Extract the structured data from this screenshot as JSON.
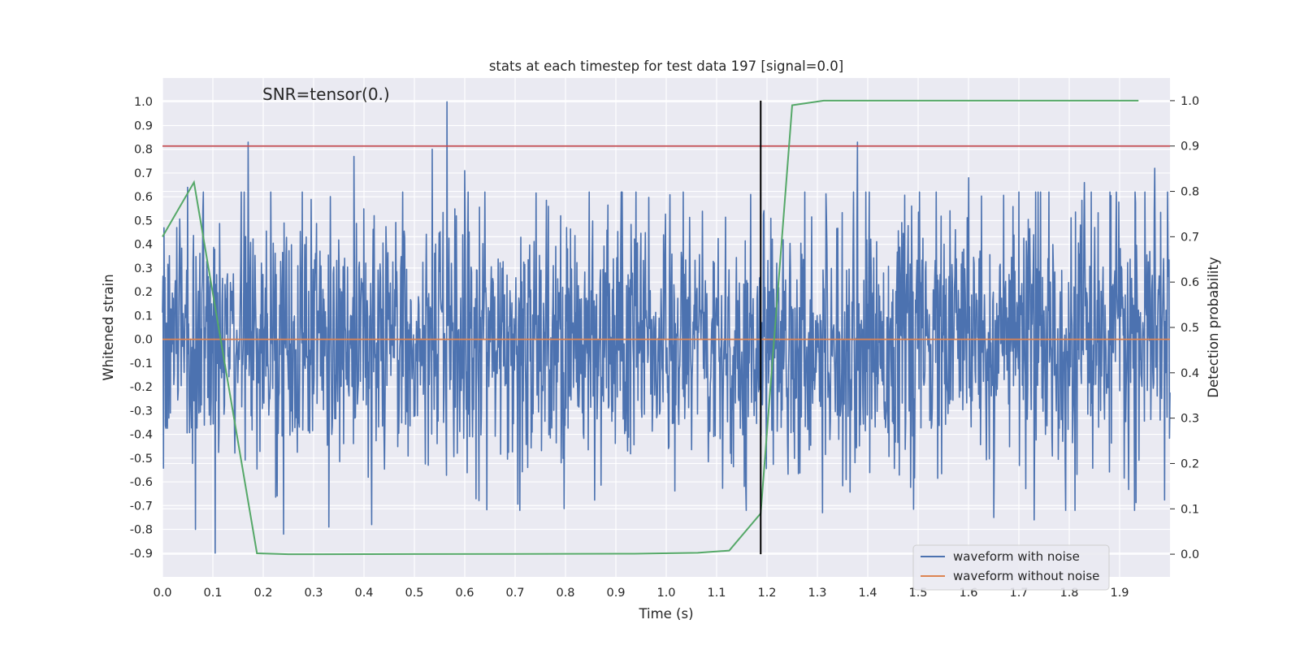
{
  "chart_data": {
    "type": "line",
    "title": "stats at each timestep for test data 197 [signal=0.0]",
    "xlabel": "Time (s)",
    "ylabel": "Whitened strain",
    "y2label": "Detection probability",
    "annotation": "SNR=tensor(0.)",
    "xlim": [
      0.0,
      2.0
    ],
    "ylim": [
      -1.0,
      1.1
    ],
    "y2lim": [
      -0.05,
      1.05
    ],
    "xticks": [
      "0.0",
      "0.1",
      "0.2",
      "0.3",
      "0.4",
      "0.5",
      "0.6",
      "0.7",
      "0.8",
      "0.9",
      "1.0",
      "1.1",
      "1.2",
      "1.3",
      "1.4",
      "1.5",
      "1.6",
      "1.7",
      "1.8",
      "1.9"
    ],
    "yticks": [
      "1.0",
      "0.9",
      "0.8",
      "0.7",
      "0.6",
      "0.5",
      "0.4",
      "0.3",
      "0.2",
      "0.1",
      "0.0",
      "-0.1",
      "-0.2",
      "-0.3",
      "-0.4",
      "-0.5",
      "-0.6",
      "-0.7",
      "-0.8",
      "-0.9"
    ],
    "y2ticks": [
      "1.0",
      "0.9",
      "0.8",
      "0.7",
      "0.6",
      "0.5",
      "0.4",
      "0.3",
      "0.2",
      "0.1",
      "0.0"
    ],
    "grid": true,
    "legend_position": "bottom-right",
    "noise_sample_count": 2048,
    "noise_approx_std": 0.27,
    "series": [
      {
        "name": "waveform with noise",
        "color": "#4c72b0",
        "axis": "left",
        "description": "dense noisy whitened strain spanning 0–2 s, mostly within about -0.9 to 1.0",
        "peaks": [
          [
            0.05,
            0.64
          ],
          [
            0.17,
            0.83
          ],
          [
            0.38,
            0.77
          ],
          [
            0.535,
            0.8
          ],
          [
            0.565,
            1.0
          ],
          [
            0.6,
            0.71
          ],
          [
            1.38,
            0.83
          ],
          [
            1.6,
            0.68
          ],
          [
            1.83,
            0.66
          ],
          [
            1.97,
            0.72
          ]
        ],
        "troughs": [
          [
            0.065,
            -0.8
          ],
          [
            0.105,
            -0.9
          ],
          [
            0.24,
            -0.82
          ],
          [
            0.33,
            -0.79
          ],
          [
            0.415,
            -0.78
          ],
          [
            1.31,
            -0.73
          ],
          [
            1.65,
            -0.75
          ],
          [
            1.73,
            -0.76
          ]
        ]
      },
      {
        "name": "waveform without noise",
        "color": "#dd8452",
        "axis": "left",
        "x": [
          0.0,
          2.0
        ],
        "y": [
          0.0,
          0.0
        ]
      },
      {
        "color": "#55a868",
        "axis": "right",
        "x": [
          0.0,
          0.0625,
          0.1875,
          0.25,
          0.3125,
          0.9375,
          1.0625,
          1.125,
          1.1875,
          1.25,
          1.3125,
          1.375,
          1.9375
        ],
        "y": [
          0.7,
          0.82,
          0.002,
          0.0,
          0.0,
          0.001,
          0.003,
          0.008,
          0.09,
          0.99,
          1.0,
          1.0,
          1.0
        ]
      }
    ],
    "threshold_line": {
      "color": "#c44e52",
      "axis": "right",
      "value": 0.9
    },
    "vertical_marker": {
      "color": "#000000",
      "x": 1.1875,
      "y2_range": [
        0.0,
        1.0
      ]
    }
  }
}
